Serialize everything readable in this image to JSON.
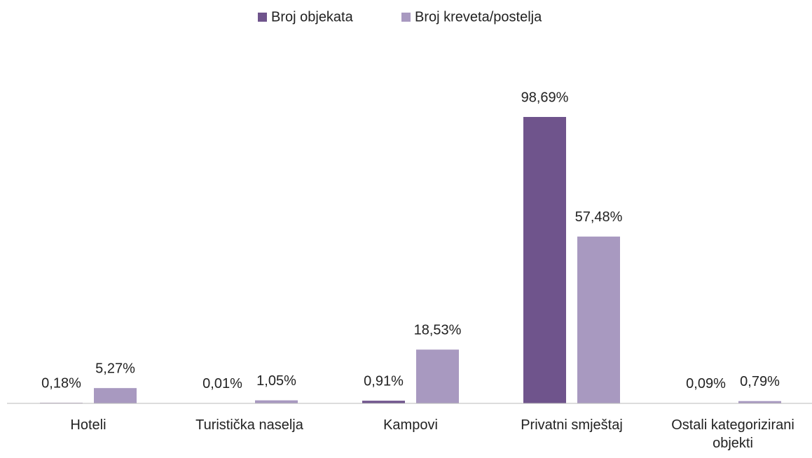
{
  "chart_data": {
    "type": "bar",
    "categories": [
      "Hoteli",
      "Turistička naselja",
      "Kampovi",
      "Privatni smještaj",
      "Ostali kategorizirani objekti"
    ],
    "series": [
      {
        "name": "Broj objekata",
        "color": "#6f548c",
        "values": [
          0.18,
          0.01,
          0.91,
          98.69,
          0.09
        ],
        "value_labels": [
          "0,18%",
          "0,01%",
          "0,91%",
          "98,69%",
          "0,09%"
        ]
      },
      {
        "name": "Broj kreveta/postelja",
        "color": "#a899c0",
        "values": [
          5.27,
          1.05,
          18.53,
          57.48,
          0.79
        ],
        "value_labels": [
          "5,27%",
          "1,05%",
          "18,53%",
          "57,48%",
          "0,79%"
        ]
      }
    ],
    "legend": "top"
  }
}
